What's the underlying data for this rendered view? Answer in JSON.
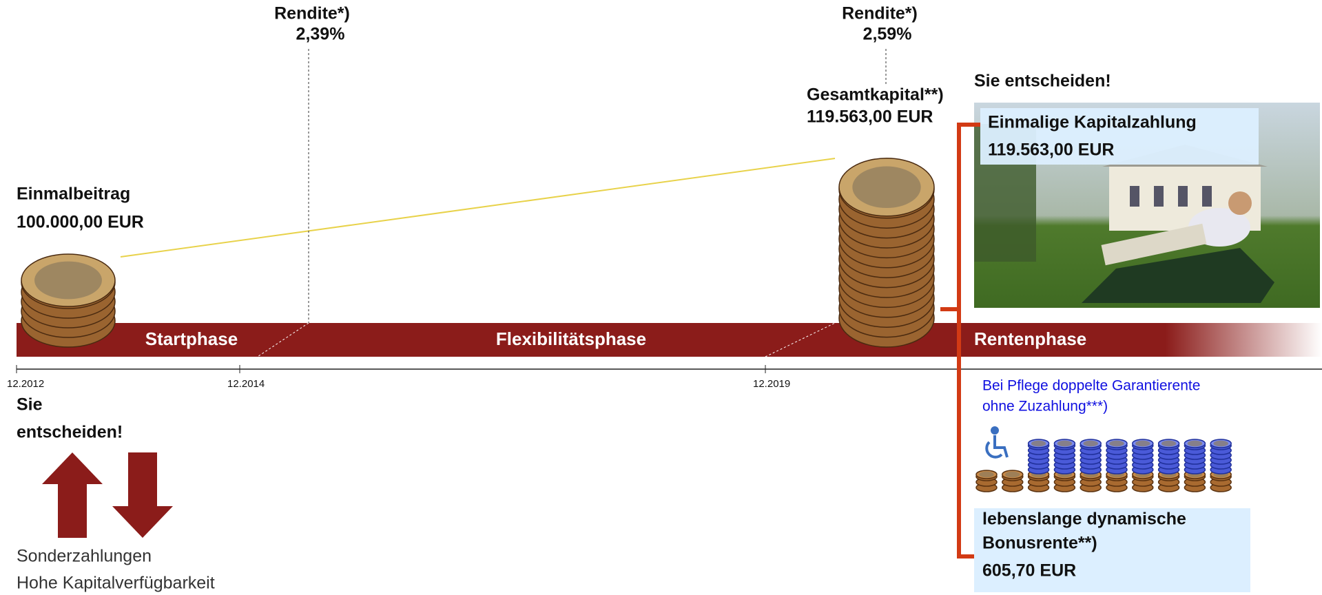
{
  "timeline": {
    "returns": [
      {
        "label": "Rendite*)",
        "value": "2,39%"
      },
      {
        "label": "Rendite*)",
        "value": "2,59%"
      }
    ],
    "start": {
      "label": "Einmalbeitrag",
      "amount": "100.000,00 EUR"
    },
    "total": {
      "label": "Gesamtkapital**)",
      "amount": "119.563,00 EUR"
    },
    "phases": [
      "Startphase",
      "Flexibilitätsphase",
      "Rentenphase"
    ],
    "dates": [
      "12.2012",
      "12.2014",
      "12.2019"
    ]
  },
  "left_panel": {
    "title_lines": [
      "Sie",
      "entscheiden!"
    ],
    "notes": [
      "Sonderzahlungen",
      "Hohe Kapitalverfügbarkeit"
    ]
  },
  "right_panel": {
    "title": "Sie entscheiden!",
    "lump_sum": {
      "label": "Einmalige Kapitalzahlung",
      "amount": "119.563,00 EUR"
    },
    "care_note": [
      "Bei Pflege doppelte Garantierente",
      "ohne Zuzahlung***)"
    ],
    "pension": {
      "label_lines": [
        "lebenslange dynamische",
        "Bonusrente**)"
      ],
      "amount": "605,70 EUR"
    }
  }
}
